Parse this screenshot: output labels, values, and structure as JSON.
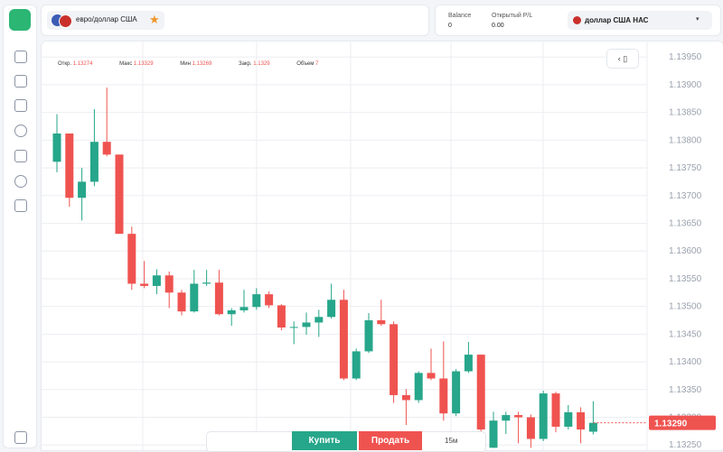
{
  "header": {
    "pair": "евро/доллар США",
    "balance_label": "Balance",
    "balance": 0,
    "pl_label": "Открытый P/L",
    "pl": "0.00",
    "account": "доллар США НАС"
  },
  "ohlc_info": {
    "open_label": "Откр.",
    "open": 1.13274,
    "high_label": "Макс",
    "high": 1.13329,
    "low_label": "Мин",
    "low": 1.13269,
    "close_label": "Закр.",
    "close": 1.1329,
    "volume_label": "Объем",
    "volume": 7
  },
  "toolbar": {
    "buy": "Купить",
    "sell": "Продать",
    "interval": "15м"
  },
  "chart_data": {
    "type": "candlestick",
    "open": [
      1.13761,
      1.13812,
      1.13696,
      1.13725,
      1.13797,
      1.13774,
      1.13631,
      1.13541,
      1.13537,
      1.13556,
      1.13525,
      1.13491,
      1.13541,
      1.13543,
      1.13486,
      1.13493,
      1.13499,
      1.13522,
      1.13502,
      1.13462,
      1.13463,
      1.13471,
      1.13481,
      1.13512,
      1.1337,
      1.13419,
      1.13475,
      1.13468,
      1.1334,
      1.13331,
      1.1338,
      1.1337,
      1.13307,
      1.13383,
      1.13413,
      1.13245,
      1.13294,
      1.13304,
      1.133,
      1.13261,
      1.13343,
      1.13283,
      1.13309,
      1.13274
    ],
    "high": [
      1.13847,
      1.13812,
      1.1375,
      1.13856,
      1.13895,
      1.13774,
      1.13644,
      1.13582,
      1.13567,
      1.13563,
      1.1353,
      1.13566,
      1.13566,
      1.13566,
      1.13497,
      1.1353,
      1.13533,
      1.13527,
      1.13504,
      1.13473,
      1.13489,
      1.13494,
      1.13541,
      1.1353,
      1.13424,
      1.13488,
      1.13512,
      1.13473,
      1.13351,
      1.13383,
      1.13424,
      1.13437,
      1.13387,
      1.13436,
      1.13413,
      1.1331,
      1.1331,
      1.1331,
      1.13305,
      1.13348,
      1.13346,
      1.13322,
      1.13318,
      1.13329
    ],
    "low": [
      1.13742,
      1.1368,
      1.13655,
      1.13717,
      1.13771,
      1.13631,
      1.1353,
      1.13533,
      1.13522,
      1.13497,
      1.13484,
      1.13489,
      1.13537,
      1.13484,
      1.13465,
      1.13489,
      1.13494,
      1.13497,
      1.13457,
      1.13432,
      1.13449,
      1.13445,
      1.13478,
      1.13367,
      1.13367,
      1.13416,
      1.13465,
      1.13326,
      1.13286,
      1.13326,
      1.13367,
      1.13294,
      1.13302,
      1.1338,
      1.1327,
      1.13245,
      1.1327,
      1.13253,
      1.13245,
      1.13257,
      1.13273,
      1.13278,
      1.13253,
      1.13269
    ],
    "close": [
      1.13812,
      1.13696,
      1.13725,
      1.13797,
      1.13774,
      1.13631,
      1.13541,
      1.13537,
      1.13556,
      1.13525,
      1.13491,
      1.13541,
      1.13543,
      1.13486,
      1.13493,
      1.13499,
      1.13522,
      1.13502,
      1.13462,
      1.13463,
      1.13471,
      1.13481,
      1.13512,
      1.1337,
      1.13419,
      1.13475,
      1.13468,
      1.1334,
      1.13331,
      1.1338,
      1.1337,
      1.13307,
      1.13383,
      1.13413,
      1.13278,
      1.13294,
      1.13304,
      1.133,
      1.13261,
      1.13343,
      1.13283,
      1.13309,
      1.13278,
      1.1329
    ],
    "up_color": "#26a68a",
    "down_color": "#ef5350",
    "ylim": [
      1.13239,
      1.13978
    ],
    "yticks": [
      {
        "value": 1.1395,
        "label": "1.13950"
      },
      {
        "value": 1.139,
        "label": "1.13900"
      },
      {
        "value": 1.1385,
        "label": "1.13850"
      },
      {
        "value": 1.138,
        "label": "1.13800"
      },
      {
        "value": 1.1375,
        "label": "1.13750"
      },
      {
        "value": 1.137,
        "label": "1.13700"
      },
      {
        "value": 1.1365,
        "label": "1.13650"
      },
      {
        "value": 1.136,
        "label": "1.13600"
      },
      {
        "value": 1.1355,
        "label": "1.13550"
      },
      {
        "value": 1.135,
        "label": "1.13500"
      },
      {
        "value": 1.1345,
        "label": "1.13450"
      },
      {
        "value": 1.134,
        "label": "1.13400"
      },
      {
        "value": 1.1335,
        "label": "1.13350"
      },
      {
        "value": 1.133,
        "label": "1.13300"
      },
      {
        "value": 1.1325,
        "label": "1.13250"
      }
    ],
    "current_price": {
      "value": 1.1329,
      "label": "1.13290"
    },
    "grid": true
  }
}
